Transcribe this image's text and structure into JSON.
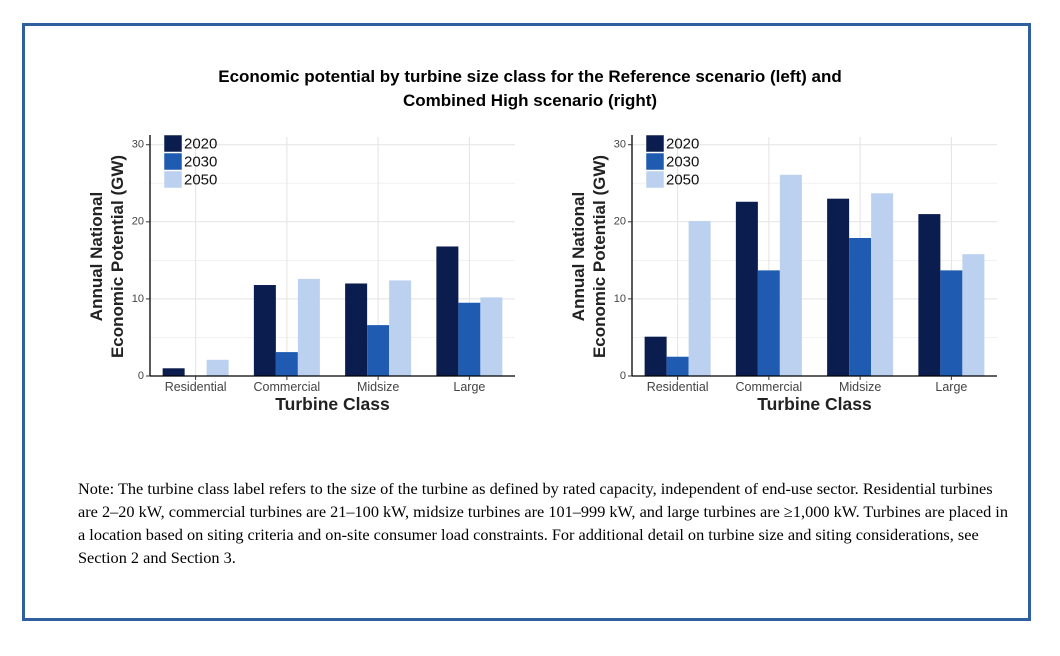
{
  "title_line1": "Economic potential by turbine size class for the Reference scenario (left) and",
  "title_line2": "Combined High scenario (right)",
  "colors": {
    "2020": "#0b1c4f",
    "2030": "#1f5bb0",
    "2050": "#bcd1ef",
    "frame": "#2f5f9e"
  },
  "chart_data": [
    {
      "type": "bar",
      "title": "",
      "categories": [
        "Residential",
        "Commercial",
        "Midsize",
        "Large"
      ],
      "series": [
        {
          "name": "2020",
          "values": [
            1.0,
            11.8,
            12.0,
            16.8
          ]
        },
        {
          "name": "2030",
          "values": [
            0.0,
            3.1,
            6.6,
            9.5
          ]
        },
        {
          "name": "2050",
          "values": [
            2.1,
            12.6,
            12.4,
            10.2
          ]
        }
      ],
      "xlabel": "Turbine Class",
      "ylabel_lines": [
        "Annual National",
        "Economic Potential (GW)"
      ],
      "ylim": [
        0,
        31
      ],
      "yticks": [
        0,
        10,
        20,
        30
      ],
      "grid": true,
      "legend": "top-left"
    },
    {
      "type": "bar",
      "title": "",
      "categories": [
        "Residential",
        "Commercial",
        "Midsize",
        "Large"
      ],
      "series": [
        {
          "name": "2020",
          "values": [
            5.1,
            22.6,
            23.0,
            21.0
          ]
        },
        {
          "name": "2030",
          "values": [
            2.5,
            13.7,
            17.9,
            13.7
          ]
        },
        {
          "name": "2050",
          "values": [
            20.1,
            26.1,
            23.7,
            15.8
          ]
        }
      ],
      "xlabel": "Turbine Class",
      "ylabel_lines": [
        "Annual National",
        "Economic Potential (GW)"
      ],
      "ylim": [
        0,
        31
      ],
      "yticks": [
        0,
        10,
        20,
        30
      ],
      "grid": true,
      "legend": "top-left"
    }
  ],
  "note_text": "Note: The turbine class label refers to the size of the turbine as defined by rated capacity, independent of end-use sector. Residential turbines are 2–20 kW, commercial turbines are 21–100 kW, midsize turbines are 101–999 kW, and large turbines are ≥1,000 kW. Turbines are placed in a location based on siting criteria and on-site consumer load constraints. For additional detail on turbine size and siting considerations, see Section 2 and Section 3."
}
